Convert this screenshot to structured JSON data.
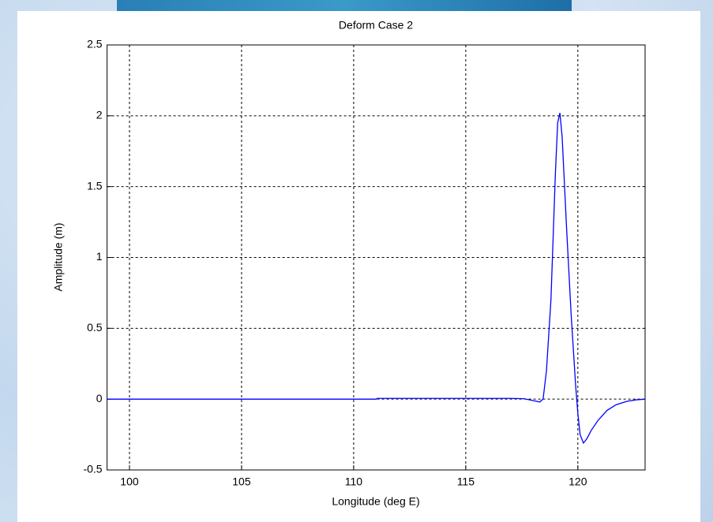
{
  "chart_data": {
    "type": "line",
    "title": "Deform Case 2",
    "x_label": "Longitude (deg E)",
    "y_label": "Amplitude (m)",
    "xlim": [
      99,
      123
    ],
    "xticks": [
      100,
      105,
      110,
      115,
      120
    ],
    "ylim": [
      -0.5,
      2.5
    ],
    "yticks": [
      -0.5,
      0,
      0.5,
      1,
      1.5,
      2,
      2.5
    ],
    "grid": true,
    "series": [
      {
        "color": "#0000ff",
        "x": [
          99,
          111,
          111.05,
          117,
          117.6,
          118.0,
          118.3,
          118.45,
          118.6,
          118.8,
          119.0,
          119.1,
          119.2,
          119.3,
          119.5,
          119.7,
          119.9,
          120.0,
          120.1,
          120.25,
          120.4,
          120.6,
          120.9,
          121.3,
          121.7,
          122.2,
          122.6,
          123
        ],
        "values": [
          0,
          0,
          0.005,
          0.005,
          0.003,
          -0.01,
          -0.02,
          0.0,
          0.2,
          0.7,
          1.6,
          1.95,
          2.02,
          1.85,
          1.2,
          0.6,
          0.1,
          -0.1,
          -0.25,
          -0.31,
          -0.28,
          -0.22,
          -0.15,
          -0.08,
          -0.04,
          -0.015,
          -0.005,
          0
        ]
      }
    ]
  }
}
